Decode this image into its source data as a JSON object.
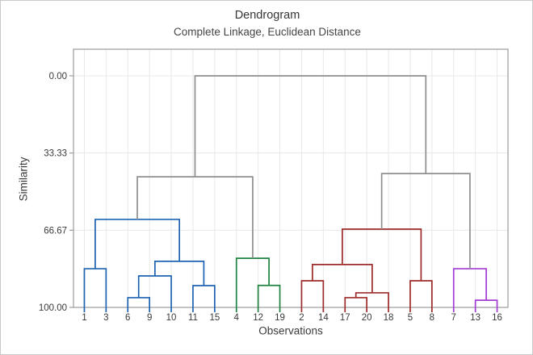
{
  "chart": {
    "title": "Dendrogram",
    "subtitle": "Complete Linkage, Euclidean Distance",
    "x_axis_label": "Observations",
    "y_axis_label": "Similarity"
  },
  "chart_data": {
    "type": "dendrogram",
    "orientation": "vertical, similarity axis inverted (0.00 at top, 100.00 at bottom)",
    "leaves": [
      "1",
      "3",
      "6",
      "9",
      "10",
      "11",
      "15",
      "4",
      "12",
      "19",
      "2",
      "14",
      "17",
      "20",
      "18",
      "5",
      "8",
      "7",
      "13",
      "16"
    ],
    "y_ticks": [
      {
        "label": "0.00",
        "value": 0
      },
      {
        "label": "33.33",
        "value": 33.33
      },
      {
        "label": "66.67",
        "value": 66.67
      },
      {
        "label": "100.00",
        "value": 100
      }
    ],
    "ylim": [
      0,
      100
    ],
    "grid": true,
    "colors": {
      "cluster_blue": "#1e63b0",
      "cluster_green": "#1f8240",
      "cluster_red": "#9e2b2b",
      "cluster_purple": "#a23bd4",
      "upper_links_gray": "#8f8f8f",
      "gridline": "#e8e8e8",
      "frame": "#9b9b9b",
      "text": "#3a3a3a"
    },
    "merges": [
      {
        "id": "M1",
        "children": [
          "1",
          "3"
        ],
        "similarity": 83.3,
        "color": "#1e63b0"
      },
      {
        "id": "M2",
        "children": [
          "6",
          "9"
        ],
        "similarity": 95.8,
        "color": "#1e63b0"
      },
      {
        "id": "M3",
        "children": [
          "M2",
          "10"
        ],
        "similarity": 86.4,
        "color": "#1e63b0"
      },
      {
        "id": "M4",
        "children": [
          "11",
          "15"
        ],
        "similarity": 90.6,
        "color": "#1e63b0"
      },
      {
        "id": "M5",
        "children": [
          "M3",
          "M4"
        ],
        "similarity": 80.1,
        "color": "#1e63b0"
      },
      {
        "id": "M6",
        "children": [
          "M1",
          "M5"
        ],
        "similarity": 62.0,
        "color": "#1e63b0"
      },
      {
        "id": "M7",
        "children": [
          "12",
          "19"
        ],
        "similarity": 90.5,
        "color": "#1f8240"
      },
      {
        "id": "M8",
        "children": [
          "4",
          "M7"
        ],
        "similarity": 78.8,
        "color": "#1f8240"
      },
      {
        "id": "M9",
        "children": [
          "2",
          "14"
        ],
        "similarity": 88.5,
        "color": "#9e2b2b"
      },
      {
        "id": "M10",
        "children": [
          "17",
          "20"
        ],
        "similarity": 95.8,
        "color": "#9e2b2b"
      },
      {
        "id": "M11",
        "children": [
          "M10",
          "18"
        ],
        "similarity": 93.7,
        "color": "#9e2b2b"
      },
      {
        "id": "M12",
        "children": [
          "M9",
          "M11"
        ],
        "similarity": 81.5,
        "color": "#9e2b2b"
      },
      {
        "id": "M13",
        "children": [
          "5",
          "8"
        ],
        "similarity": 88.5,
        "color": "#9e2b2b"
      },
      {
        "id": "M14",
        "children": [
          "M12",
          "M13"
        ],
        "similarity": 66.2,
        "color": "#9e2b2b"
      },
      {
        "id": "M15",
        "children": [
          "13",
          "16"
        ],
        "similarity": 96.9,
        "color": "#a23bd4"
      },
      {
        "id": "M16",
        "children": [
          "7",
          "M15"
        ],
        "similarity": 83.3,
        "color": "#a23bd4"
      },
      {
        "id": "M17",
        "children": [
          "M6",
          "M8"
        ],
        "similarity": 43.6,
        "color": "#8f8f8f"
      },
      {
        "id": "M18",
        "children": [
          "M14",
          "M16"
        ],
        "similarity": 42.2,
        "color": "#8f8f8f"
      },
      {
        "id": "M19",
        "children": [
          "M17",
          "M18"
        ],
        "similarity": 0.0,
        "color": "#8f8f8f"
      }
    ]
  }
}
